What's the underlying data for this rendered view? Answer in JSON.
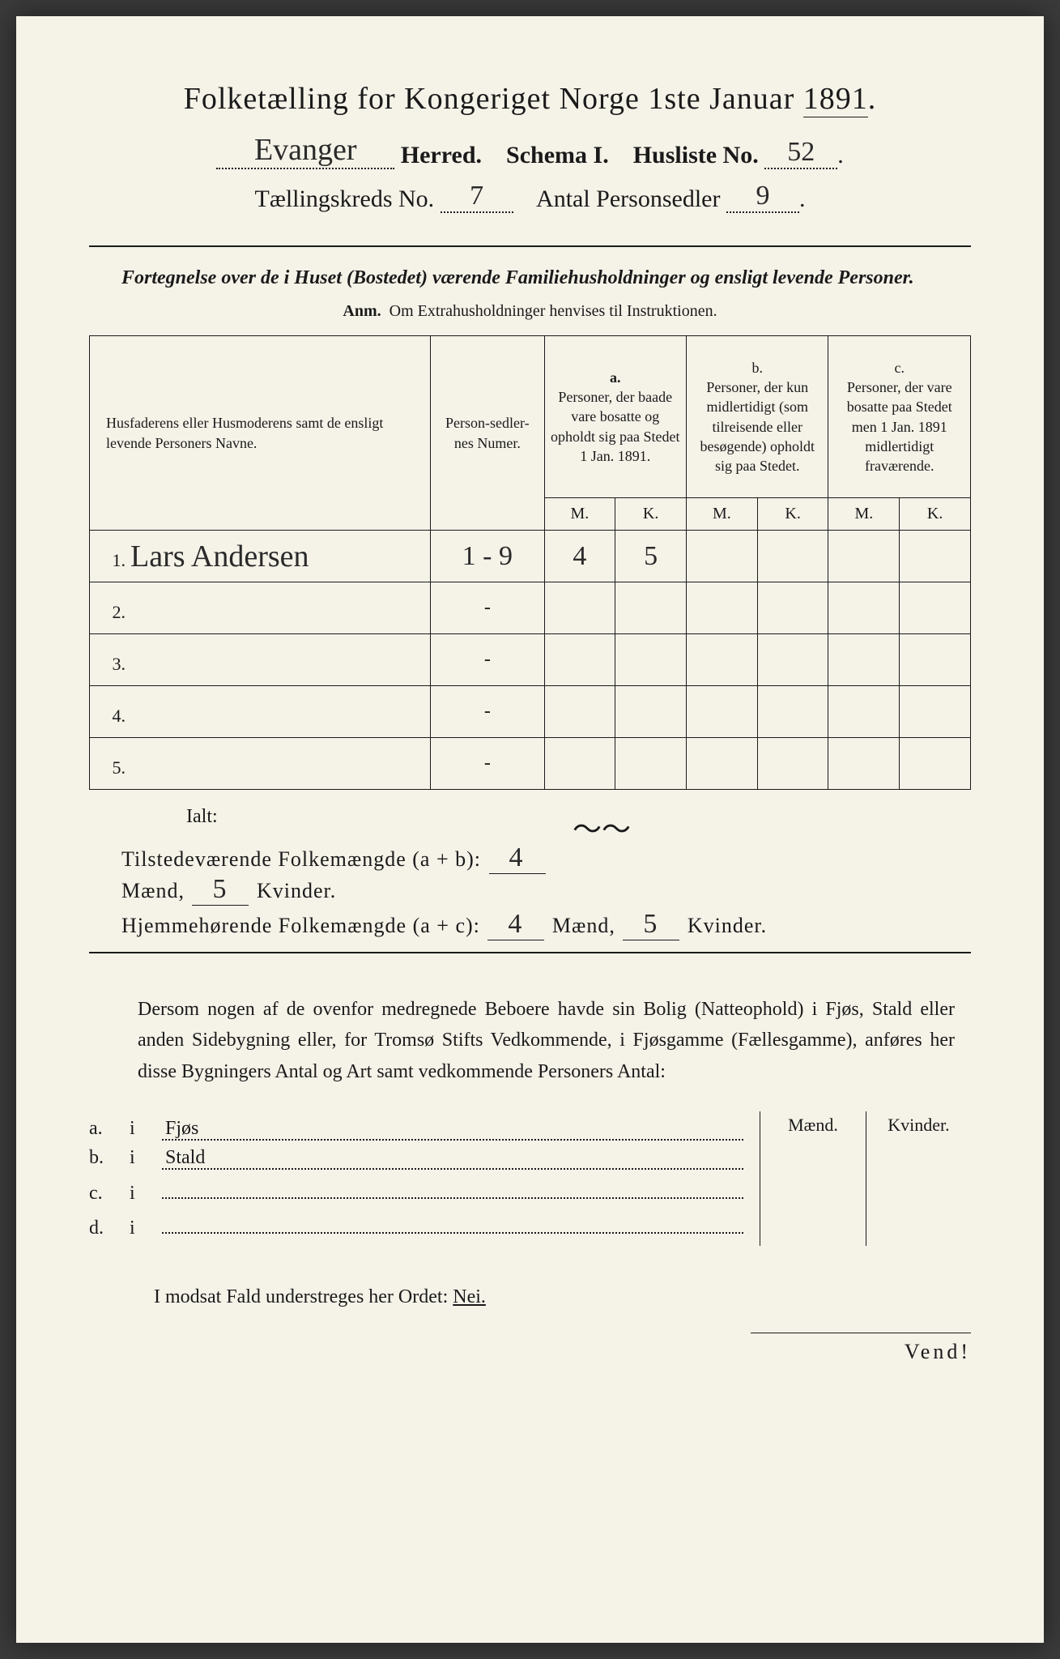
{
  "colors": {
    "paper_bg": "#f5f2e8",
    "ink": "#1a1a1a",
    "handwriting": "#2a2a2a",
    "outer_bg": "#3a3a3a"
  },
  "title": {
    "text_pre": "Folketælling for Kongeriget Norge 1ste Januar ",
    "year": "1891",
    "suffix": "."
  },
  "header": {
    "herred_value": "Evanger",
    "herred_label": "Herred.",
    "schema_label": "Schema I.",
    "husliste_label": "Husliste No.",
    "husliste_value": "52",
    "kreds_label": "Tællingskreds No.",
    "kreds_value": "7",
    "antal_label": "Antal Personsedler",
    "antal_value": "9"
  },
  "instruction": {
    "line": "Fortegnelse over de i Huset (Bostedet) værende Familiehusholdninger og ensligt levende Personer.",
    "anm_label": "Anm.",
    "anm_text": "Om Extrahusholdninger henvises til Instruktionen."
  },
  "table": {
    "col_name": "Husfaderens eller Husmoderens samt de ensligt levende Personers Navne.",
    "col_numer": "Person-sedler-nes Numer.",
    "col_a_label": "a.",
    "col_a_text": "Personer, der baade vare bosatte og opholdt sig paa Stedet 1 Jan. 1891.",
    "col_b_label": "b.",
    "col_b_text": "Personer, der kun midlertidigt (som tilreisende eller besøgende) opholdt sig paa Stedet.",
    "col_c_label": "c.",
    "col_c_text": "Personer, der vare bosatte paa Stedet men 1 Jan. 1891 midlertidigt fraværende.",
    "mk_m": "M.",
    "mk_k": "K.",
    "rows": [
      {
        "n": "1.",
        "name": "Lars Andersen",
        "numer": "1 - 9",
        "a_m": "4",
        "a_k": "5",
        "b_m": "",
        "b_k": "",
        "c_m": "",
        "c_k": ""
      },
      {
        "n": "2.",
        "name": "",
        "numer": "-",
        "a_m": "",
        "a_k": "",
        "b_m": "",
        "b_k": "",
        "c_m": "",
        "c_k": ""
      },
      {
        "n": "3.",
        "name": "",
        "numer": "-",
        "a_m": "",
        "a_k": "",
        "b_m": "",
        "b_k": "",
        "c_m": "",
        "c_k": ""
      },
      {
        "n": "4.",
        "name": "",
        "numer": "-",
        "a_m": "",
        "a_k": "",
        "b_m": "",
        "b_k": "",
        "c_m": "",
        "c_k": ""
      },
      {
        "n": "5.",
        "name": "",
        "numer": "-",
        "a_m": "",
        "a_k": "",
        "b_m": "",
        "b_k": "",
        "c_m": "",
        "c_k": ""
      }
    ]
  },
  "totals": {
    "ialt": "Ialt:",
    "squiggle": "～～",
    "line1_label": "Tilstedeværende Folkemængde (a + b):",
    "line2_label": "Hjemmehørende Folkemængde (a + c):",
    "maend": "Mænd,",
    "kvinder": "Kvinder.",
    "l1_m": "4",
    "l1_k": "5",
    "l2_m": "4",
    "l2_k": "5"
  },
  "lower": {
    "para": "Dersom nogen af de ovenfor medregnede Beboere havde sin Bolig (Natteophold) i Fjøs, Stald eller anden Sidebygning eller, for Tromsø Stifts Vedkommende, i Fjøsgamme (Fællesgamme), anføres her disse Bygningers Antal og Art samt vedkommende Personers Antal:",
    "col_maend": "Mænd.",
    "col_kvinder": "Kvinder.",
    "items": [
      {
        "lbl": "a.",
        "mid": "i",
        "txt": "Fjøs"
      },
      {
        "lbl": "b.",
        "mid": "i",
        "txt": "Stald"
      },
      {
        "lbl": "c.",
        "mid": "i",
        "txt": ""
      },
      {
        "lbl": "d.",
        "mid": "i",
        "txt": ""
      }
    ]
  },
  "nei": {
    "text": "I modsat Fald understreges her Ordet: ",
    "word": "Nei."
  },
  "vend": "Vend!"
}
